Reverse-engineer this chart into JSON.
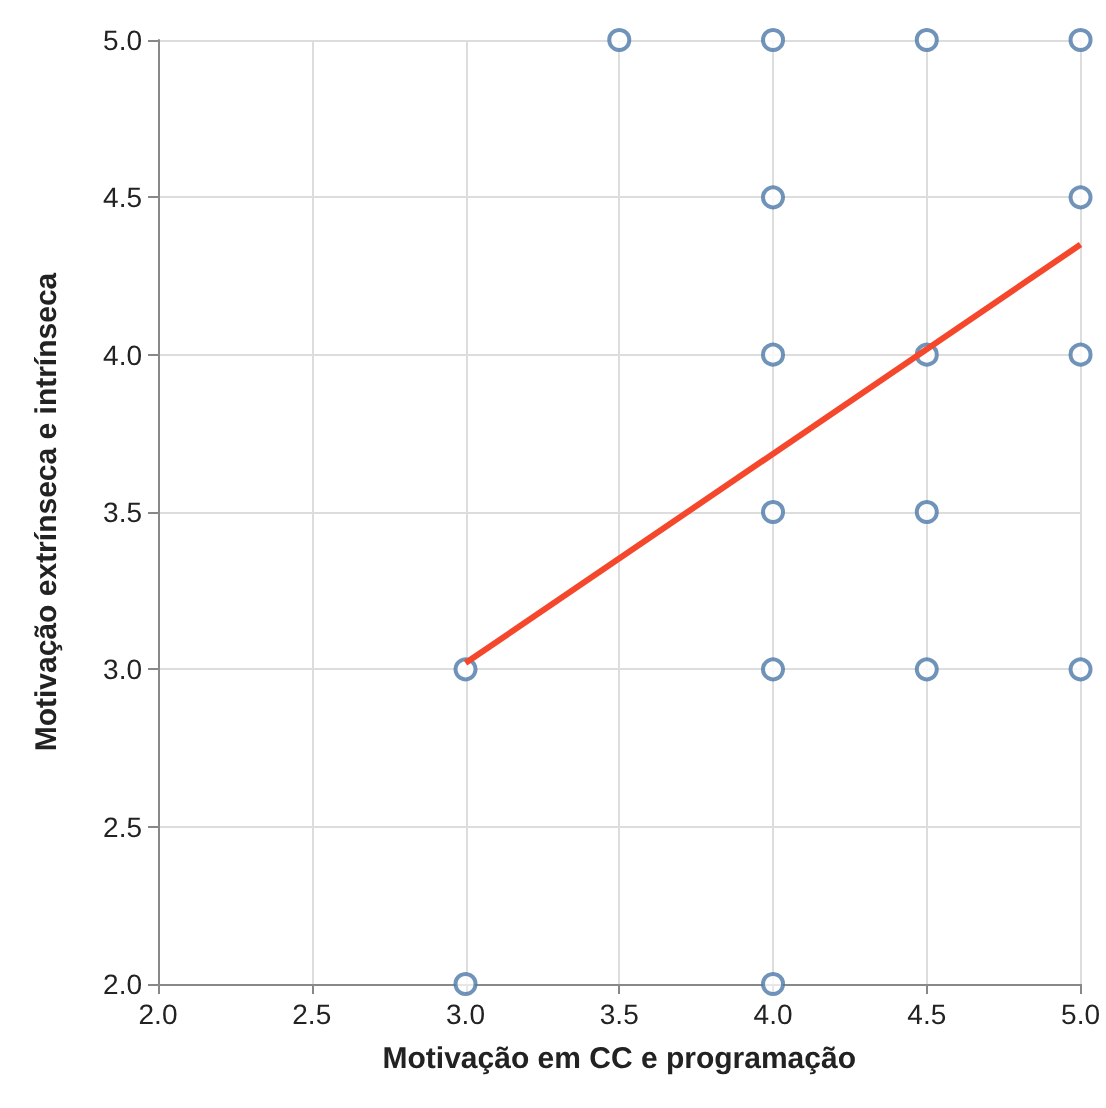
{
  "chart_data": {
    "type": "scatter",
    "xlabel": "Motivação em CC e programação",
    "ylabel": "Motivação extrínseca e intrínseca",
    "xlim": [
      2,
      5
    ],
    "ylim": [
      2,
      5
    ],
    "xticks": [
      {
        "value": 2,
        "label": "2.0"
      },
      2.5,
      {
        "value": 3,
        "label": "3.0"
      },
      3.5,
      {
        "value": 4,
        "label": "4.0"
      },
      4.5,
      {
        "value": 5,
        "label": "5.0"
      }
    ],
    "yticks": [
      {
        "value": 2,
        "label": "2.0"
      },
      2.5,
      {
        "value": 3,
        "label": "3.0"
      },
      3.5,
      {
        "value": 4,
        "label": "4.0"
      },
      4.5,
      {
        "value": 5,
        "label": "5.0"
      }
    ],
    "grid": true,
    "series": [
      {
        "color": "#4c78a8",
        "marker": "circle",
        "x": [
          3,
          3,
          3.5,
          4,
          4,
          4,
          4,
          4,
          4,
          4.5,
          4.5,
          4.5,
          4.5,
          5,
          5,
          5,
          5
        ],
        "values": [
          3,
          2,
          5,
          5,
          4.5,
          4,
          3.5,
          3,
          2,
          5,
          4,
          3.5,
          3,
          5,
          4.5,
          4,
          3
        ]
      },
      {
        "type": "line",
        "marker": "none",
        "color": "#f4472b",
        "x": [
          3,
          5
        ],
        "values": [
          3.02,
          4.35
        ]
      }
    ]
  }
}
